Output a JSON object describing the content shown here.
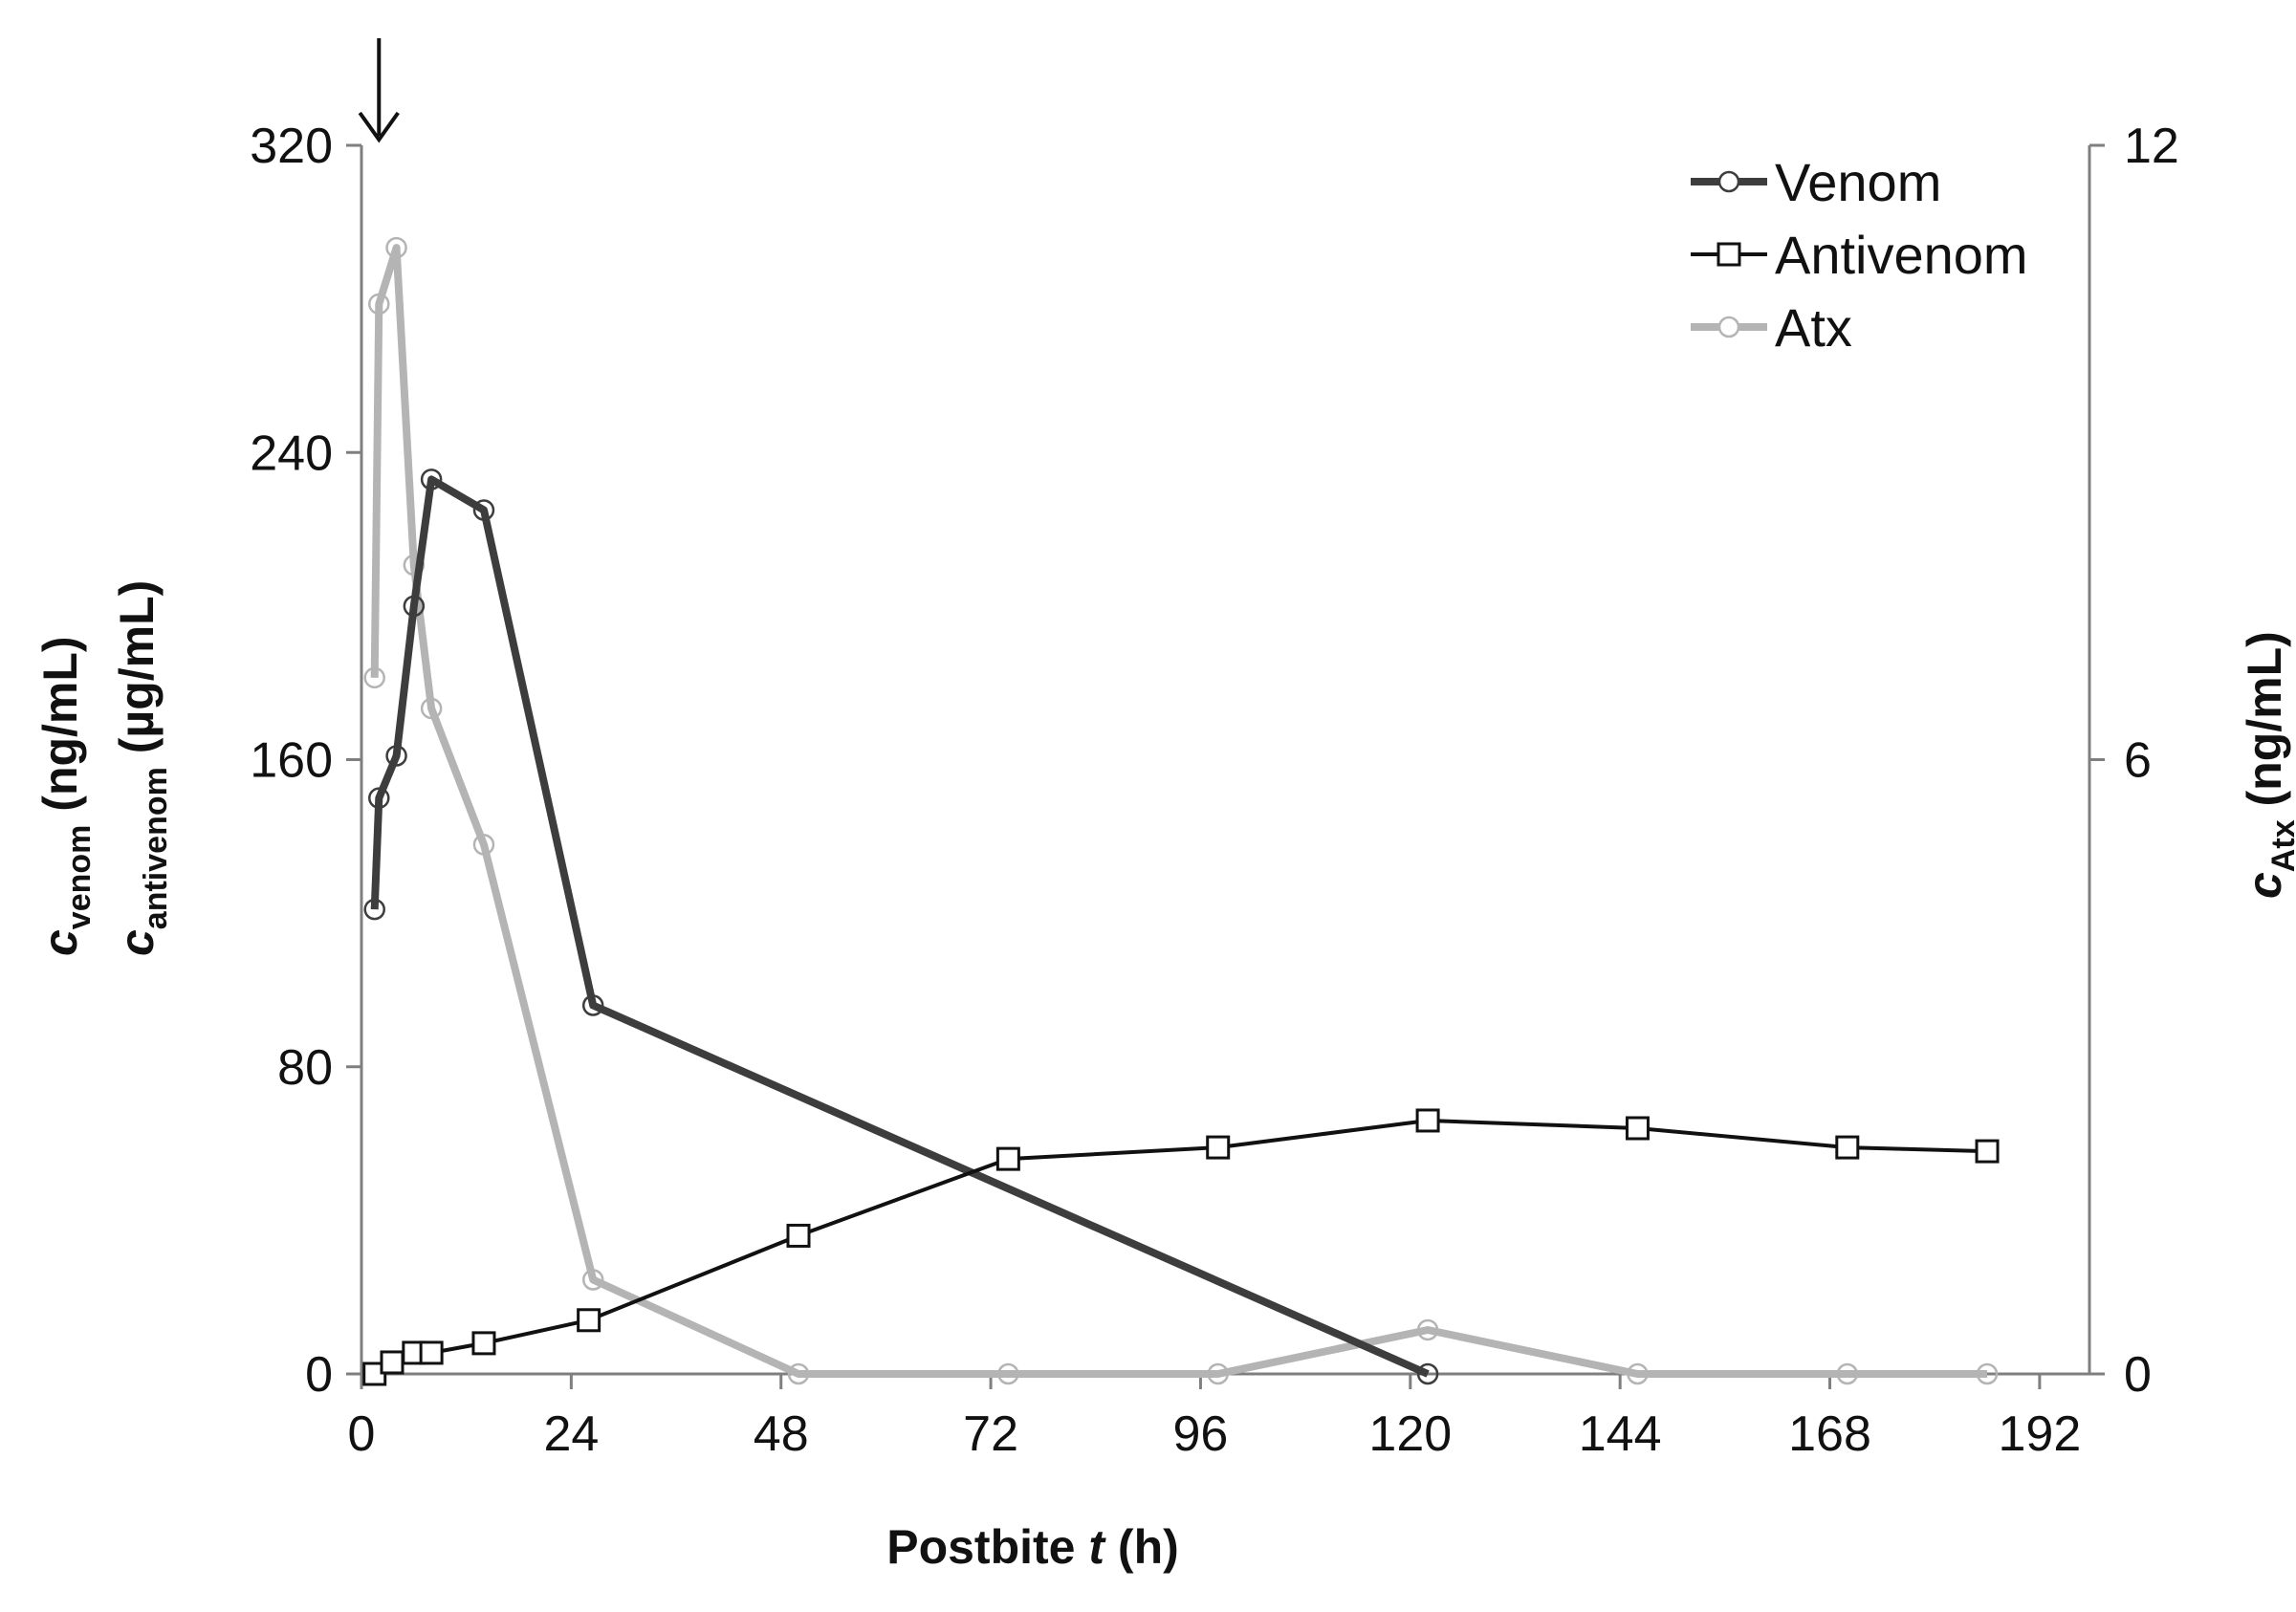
{
  "chart_data": {
    "type": "line",
    "xlabel": {
      "prefix": "Postbite ",
      "italic": "t",
      "suffix": " (h)"
    },
    "ylabel_left": [
      {
        "var": "c",
        "sub": "venom",
        "unit": " (ng/mL)"
      },
      {
        "var": "c",
        "sub": "antivenom",
        "unit": " (µg/mL)"
      }
    ],
    "ylabel_right": {
      "var": "c",
      "sub": "Atx",
      "unit": " (ng/mL)"
    },
    "xlim": [
      0,
      200
    ],
    "ylim_left": [
      0,
      320
    ],
    "ylim_right": [
      0,
      12
    ],
    "x_ticks": [
      0,
      24,
      48,
      72,
      96,
      120,
      144,
      168,
      192
    ],
    "x_tick_labels": [
      "0",
      "24",
      "48",
      "72",
      "96",
      "120",
      "144",
      "168",
      "192"
    ],
    "y_left_ticks": [
      0,
      80,
      160,
      240,
      320
    ],
    "y_left_tick_labels": [
      "0",
      "80",
      "160",
      "240",
      "320"
    ],
    "y_right_ticks": [
      0,
      6,
      12
    ],
    "y_right_tick_labels": [
      "0",
      "6",
      "12"
    ],
    "grid": false,
    "legend_position": "top-right",
    "annotation_arrow_x": 2,
    "series": [
      {
        "name": "Venom",
        "axis": "left",
        "color": "#3d3d3d",
        "marker": "circle",
        "x": [
          1.5,
          2,
          4,
          6,
          8,
          14,
          26.5,
          122
        ],
        "y": [
          121,
          150,
          161,
          200,
          233,
          225,
          96,
          0
        ]
      },
      {
        "name": "Antivenom",
        "axis": "left",
        "color": "#111111",
        "marker": "square",
        "x": [
          1.5,
          3.5,
          6,
          8,
          14,
          26,
          50,
          74,
          98,
          122,
          146,
          170,
          186
        ],
        "y": [
          0,
          3,
          5.5,
          5.5,
          8,
          14,
          36,
          56,
          59,
          66,
          64,
          59,
          58
        ]
      },
      {
        "name": "Atx",
        "axis": "right",
        "color": "#b4b4b4",
        "marker": "circle",
        "x": [
          1.5,
          2,
          4,
          6,
          8,
          14,
          26.5,
          50,
          74,
          98,
          122,
          146,
          170,
          186
        ],
        "y": [
          6.8,
          10.45,
          11,
          7.9,
          6.5,
          5.17,
          0.92,
          0,
          0,
          0,
          0.43,
          0,
          0,
          0
        ]
      }
    ]
  }
}
